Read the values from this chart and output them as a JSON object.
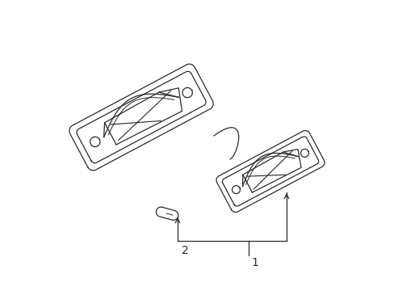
{
  "bg_color": "#ffffff",
  "line_color": "#2a2a2a",
  "figsize": [
    4.89,
    3.6
  ],
  "dpi": 100,
  "label1": "1",
  "label2": "2",
  "lw": 0.9
}
